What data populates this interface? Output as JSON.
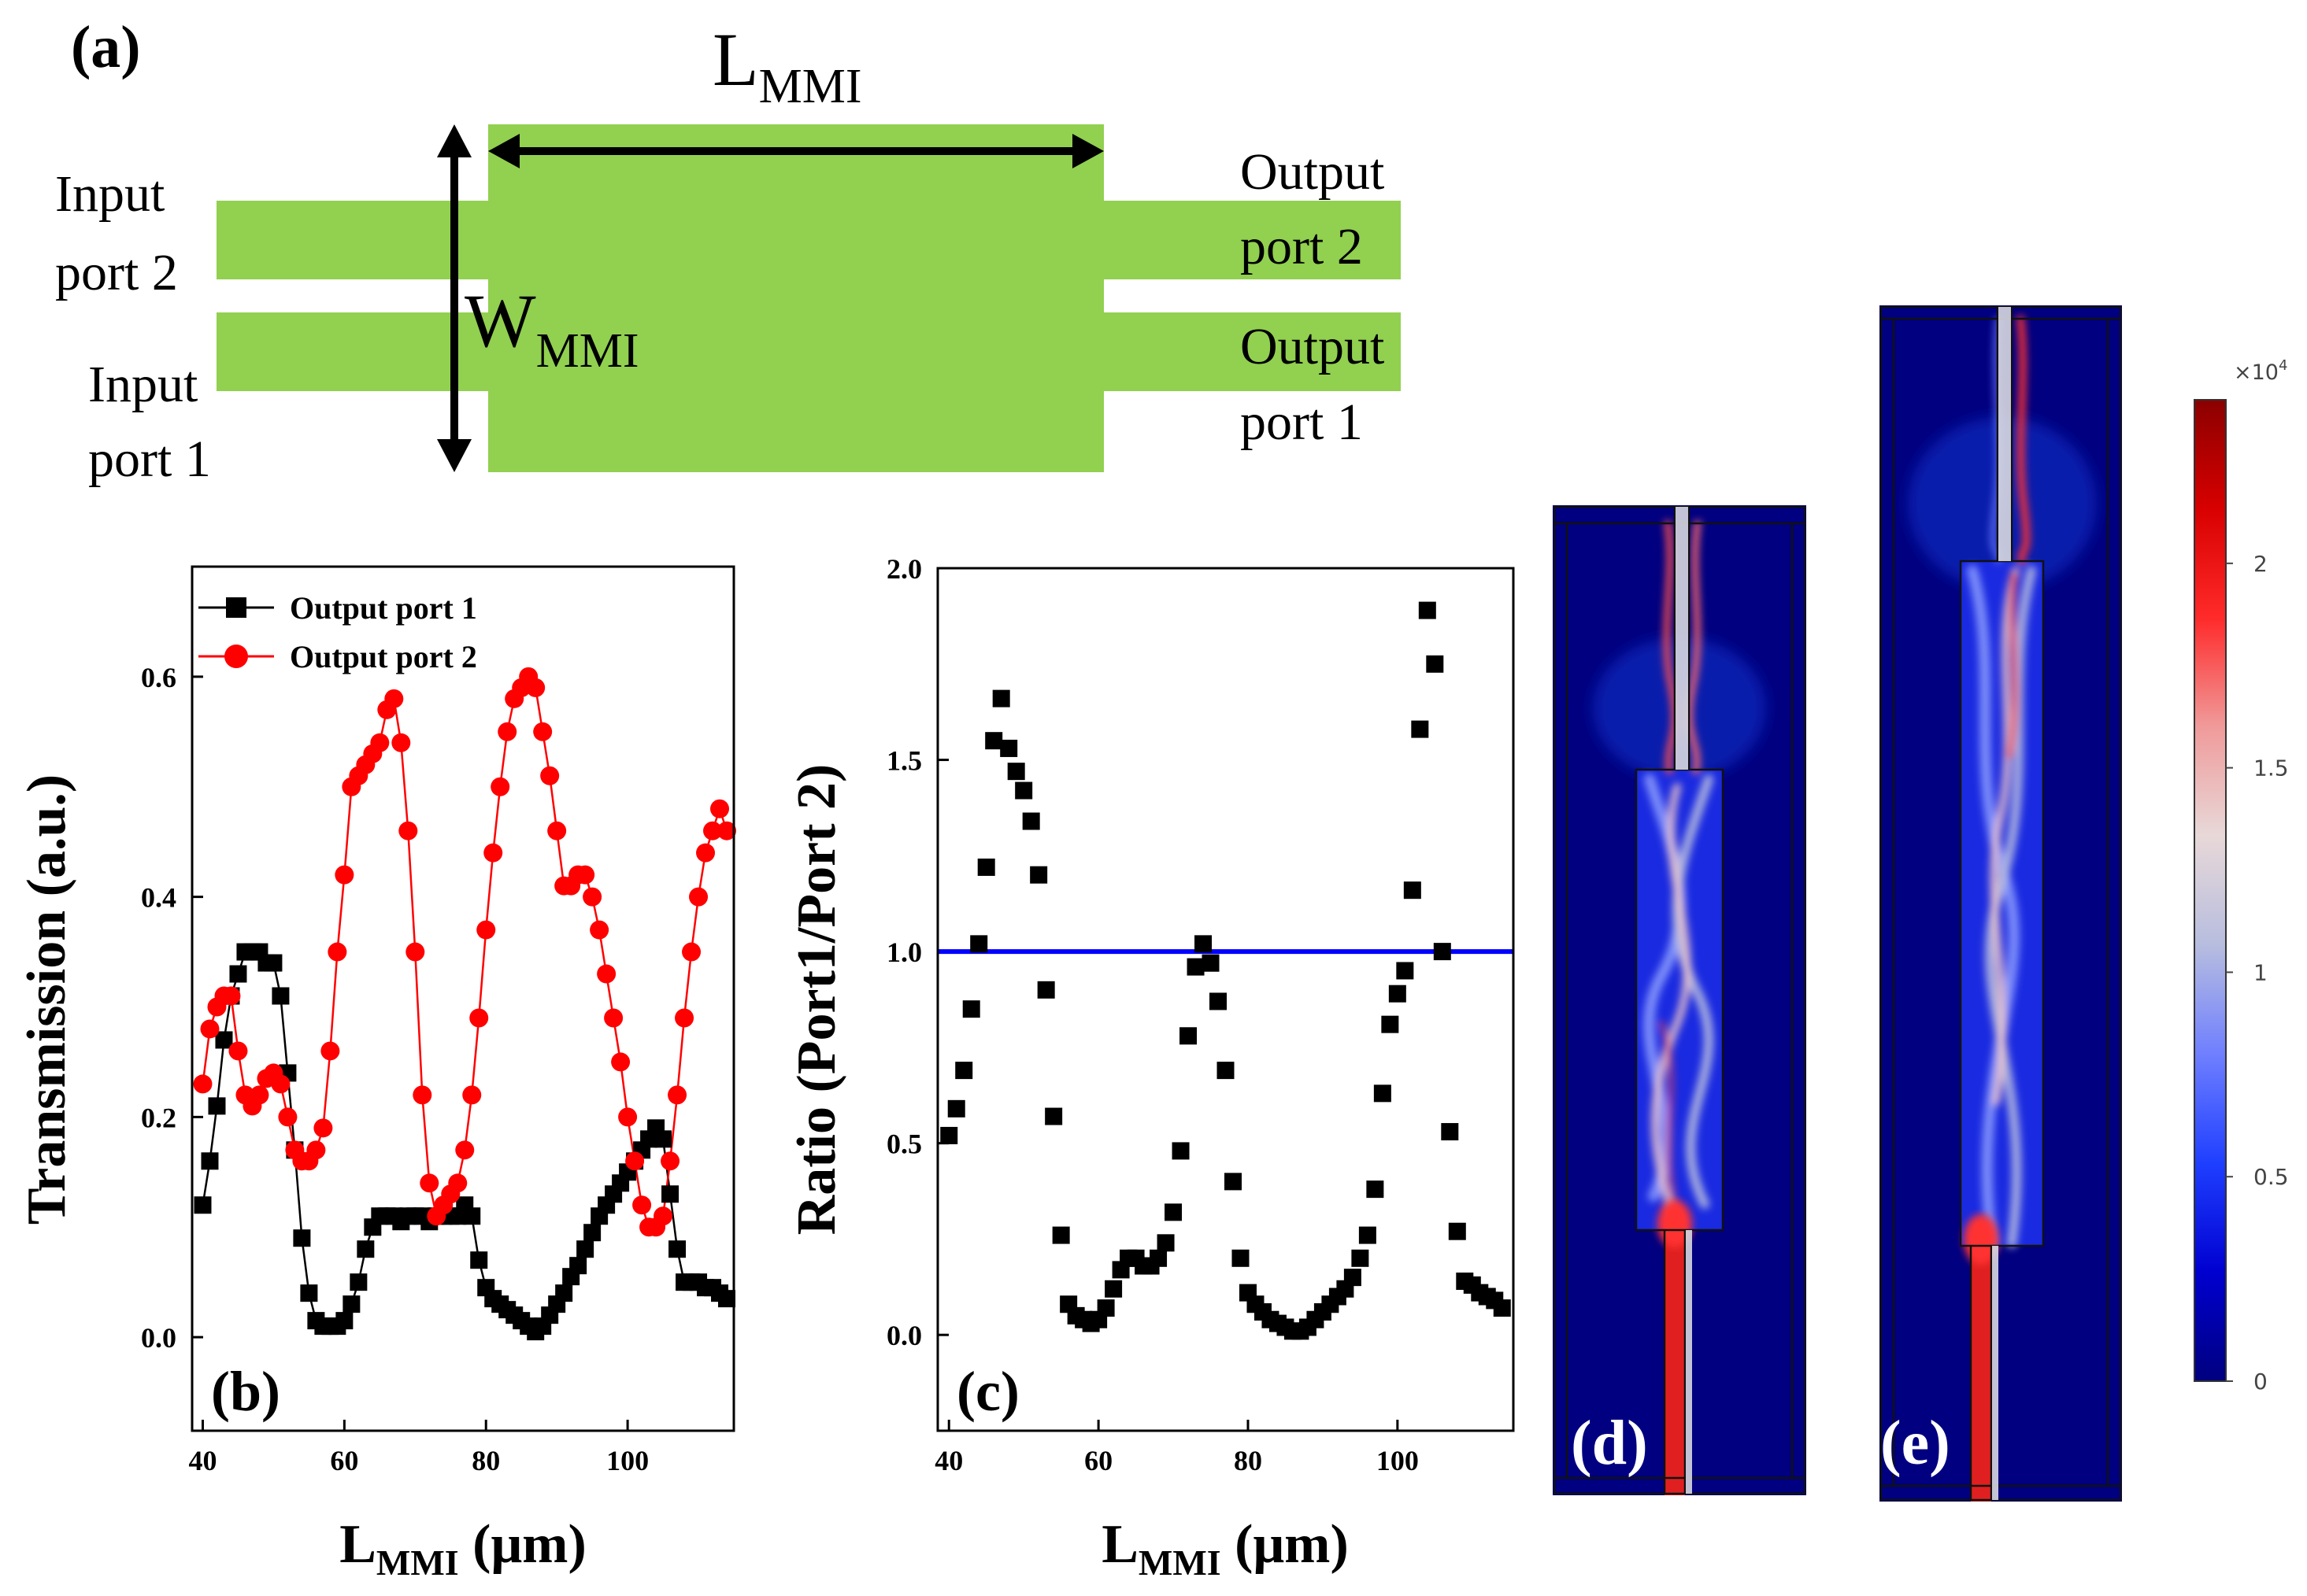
{
  "panel_a": {
    "label": "(a)",
    "length_label": "L",
    "length_sub": "MMI",
    "width_label": "W",
    "width_sub": "MMI",
    "input2": [
      "Input",
      "port 2"
    ],
    "input1": [
      "Input",
      "port 1"
    ],
    "output2": [
      "Output",
      "port 2"
    ],
    "output1": [
      "Output",
      "port 1"
    ],
    "colors": {
      "waveguide": "#92d050",
      "arrow": "#000000"
    }
  },
  "chart_data": [
    {
      "type": "line",
      "panel_label": "(b)",
      "xlabel_main": "L",
      "xlabel_sub": "MMI",
      "xlabel_unit": " (μm)",
      "ylabel": "Transmission (a.u.)",
      "xlim": [
        38.5,
        115
      ],
      "ylim": [
        -0.085,
        0.7
      ],
      "xticks": [
        40,
        60,
        80,
        100
      ],
      "yticks": [
        0.0,
        0.2,
        0.4,
        0.6
      ],
      "ytick_labels": [
        "0.0",
        "0.2",
        "0.4",
        "0.6"
      ],
      "legend_position": "top-left",
      "series": [
        {
          "name": "Output port 1",
          "color": "#000000",
          "marker": "square",
          "x": [
            40,
            41,
            42,
            43,
            44,
            45,
            46,
            47,
            48,
            49,
            50,
            51,
            52,
            53,
            54,
            55,
            56,
            57,
            58,
            59,
            60,
            61,
            62,
            63,
            64,
            65,
            66,
            67,
            68,
            69,
            70,
            71,
            72,
            73,
            74,
            75,
            76,
            77,
            78,
            79,
            80,
            81,
            82,
            83,
            84,
            85,
            86,
            87,
            88,
            89,
            90,
            91,
            92,
            93,
            94,
            95,
            96,
            97,
            98,
            99,
            100,
            101,
            102,
            103,
            104,
            105,
            106,
            107,
            108,
            109,
            110,
            111,
            112,
            113,
            114
          ],
          "y": [
            0.12,
            0.16,
            0.21,
            0.27,
            0.31,
            0.33,
            0.35,
            0.35,
            0.35,
            0.34,
            0.34,
            0.31,
            0.24,
            0.17,
            0.09,
            0.04,
            0.015,
            0.01,
            0.01,
            0.01,
            0.015,
            0.03,
            0.05,
            0.08,
            0.1,
            0.11,
            0.11,
            0.11,
            0.105,
            0.11,
            0.11,
            0.11,
            0.105,
            0.11,
            0.11,
            0.11,
            0.11,
            0.12,
            0.11,
            0.07,
            0.045,
            0.035,
            0.03,
            0.025,
            0.02,
            0.015,
            0.01,
            0.005,
            0.01,
            0.02,
            0.03,
            0.04,
            0.055,
            0.065,
            0.08,
            0.095,
            0.11,
            0.12,
            0.13,
            0.14,
            0.15,
            0.16,
            0.17,
            0.18,
            0.19,
            0.18,
            0.13,
            0.08,
            0.05,
            0.05,
            0.05,
            0.045,
            0.045,
            0.04,
            0.035
          ]
        },
        {
          "name": "Output port 2",
          "color": "#ff0000",
          "marker": "circle",
          "x": [
            40,
            41,
            42,
            43,
            44,
            45,
            46,
            47,
            48,
            49,
            50,
            51,
            52,
            53,
            54,
            55,
            56,
            57,
            58,
            59,
            60,
            61,
            62,
            63,
            64,
            65,
            66,
            67,
            68,
            69,
            70,
            71,
            72,
            73,
            74,
            75,
            76,
            77,
            78,
            79,
            80,
            81,
            82,
            83,
            84,
            85,
            86,
            87,
            88,
            89,
            90,
            91,
            92,
            93,
            94,
            95,
            96,
            97,
            98,
            99,
            100,
            101,
            102,
            103,
            104,
            105,
            106,
            107,
            108,
            109,
            110,
            111,
            112,
            113,
            114
          ],
          "y": [
            0.23,
            0.28,
            0.3,
            0.31,
            0.31,
            0.26,
            0.22,
            0.21,
            0.22,
            0.235,
            0.24,
            0.23,
            0.2,
            0.17,
            0.16,
            0.16,
            0.17,
            0.19,
            0.26,
            0.35,
            0.42,
            0.5,
            0.51,
            0.52,
            0.53,
            0.54,
            0.57,
            0.58,
            0.54,
            0.46,
            0.35,
            0.22,
            0.14,
            0.11,
            0.12,
            0.13,
            0.14,
            0.17,
            0.22,
            0.29,
            0.37,
            0.44,
            0.5,
            0.55,
            0.58,
            0.59,
            0.6,
            0.59,
            0.55,
            0.51,
            0.46,
            0.41,
            0.41,
            0.42,
            0.42,
            0.4,
            0.37,
            0.33,
            0.29,
            0.25,
            0.2,
            0.16,
            0.12,
            0.1,
            0.1,
            0.11,
            0.16,
            0.22,
            0.29,
            0.35,
            0.4,
            0.44,
            0.46,
            0.48,
            0.46
          ]
        }
      ]
    },
    {
      "type": "scatter",
      "panel_label": "(c)",
      "xlabel_main": "L",
      "xlabel_sub": "MMI",
      "xlabel_unit": " (μm)",
      "ylabel": "Ratio (Port1/Port 2)",
      "xlim": [
        38.5,
        115.5
      ],
      "ylim": [
        -0.25,
        2.0
      ],
      "xticks": [
        40,
        60,
        80,
        100
      ],
      "yticks": [
        0.0,
        0.5,
        1.0,
        1.5,
        2.0
      ],
      "ytick_labels": [
        "0.0",
        "0.5",
        "1.0",
        "1.5",
        "2.0"
      ],
      "reference_line": {
        "y": 1.0,
        "color": "#0000ff"
      },
      "series": [
        {
          "name": "Ratio",
          "color": "#000000",
          "marker": "square",
          "x": [
            40,
            41,
            42,
            43,
            44,
            45,
            46,
            47,
            48,
            49,
            50,
            51,
            52,
            53,
            54,
            55,
            56,
            57,
            58,
            59,
            60,
            61,
            62,
            63,
            64,
            65,
            66,
            67,
            68,
            69,
            70,
            71,
            72,
            73,
            74,
            75,
            76,
            77,
            78,
            79,
            80,
            81,
            82,
            83,
            84,
            85,
            86,
            87,
            88,
            89,
            90,
            91,
            92,
            93,
            94,
            95,
            96,
            97,
            98,
            99,
            100,
            101,
            102,
            103,
            104,
            105,
            106,
            107,
            108,
            109,
            110,
            111,
            112,
            113,
            114
          ],
          "y": [
            0.52,
            0.59,
            0.69,
            0.85,
            1.02,
            1.22,
            1.55,
            1.66,
            1.53,
            1.47,
            1.42,
            1.34,
            1.2,
            0.9,
            0.57,
            0.26,
            0.08,
            0.05,
            0.04,
            0.03,
            0.04,
            0.07,
            0.12,
            0.17,
            0.2,
            0.2,
            0.18,
            0.18,
            0.2,
            0.24,
            0.32,
            0.48,
            0.78,
            0.96,
            1.02,
            0.97,
            0.87,
            0.69,
            0.4,
            0.2,
            0.11,
            0.08,
            0.06,
            0.04,
            0.03,
            0.02,
            0.01,
            0.01,
            0.02,
            0.04,
            0.06,
            0.08,
            0.1,
            0.12,
            0.15,
            0.2,
            0.26,
            0.38,
            0.63,
            0.81,
            0.89,
            0.95,
            1.16,
            1.58,
            1.89,
            1.75,
            1.0,
            0.53,
            0.27,
            0.14,
            0.13,
            0.11,
            0.1,
            0.09,
            0.07
          ]
        }
      ]
    }
  ],
  "panel_d": {
    "label": "(d)"
  },
  "panel_e": {
    "label": "(e)"
  },
  "colorbar": {
    "multiplier": "×10",
    "exponent": "4",
    "ticks": [
      "0",
      "0.5",
      "1",
      "1.5",
      "2"
    ],
    "tick_values": [
      0,
      0.5,
      1,
      1.5,
      2
    ],
    "max_value": 2.4,
    "colors": [
      "#00007f",
      "#0000d0",
      "#1f3fff",
      "#6f7fff",
      "#b7bddf",
      "#e8d8d8",
      "#f09a9a",
      "#ff2a2a",
      "#d80000",
      "#8b0000"
    ]
  }
}
